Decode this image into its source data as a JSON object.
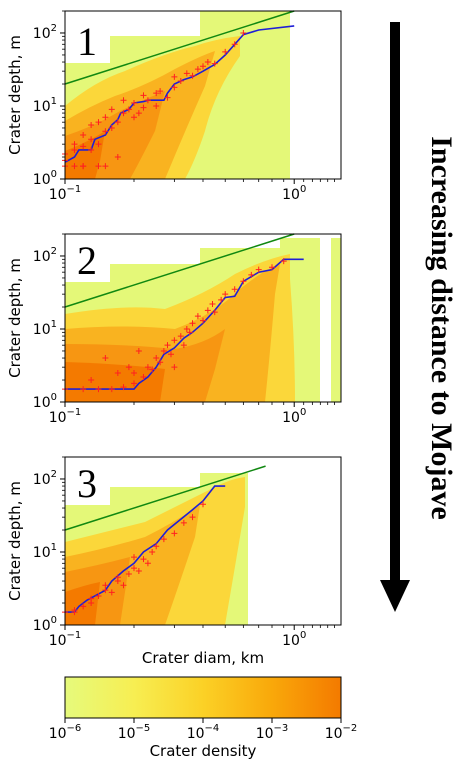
{
  "chart_data": [
    {
      "type": "heatmap",
      "panel_label": "1",
      "xlabel": "",
      "ylabel": "Crater depth, m",
      "x_scale": "log",
      "y_scale": "log",
      "xlim": [
        0.1,
        1.6
      ],
      "ylim": [
        1,
        200
      ],
      "x_ticks": [
        {
          "value": 0.1,
          "base": "10",
          "exp": "−1"
        },
        {
          "value": 1,
          "base": "10",
          "exp": "0"
        }
      ],
      "y_ticks": [
        {
          "value": 1,
          "base": "10",
          "exp": "0"
        },
        {
          "value": 10,
          "base": "10",
          "exp": "1"
        },
        {
          "value": 100,
          "base": "10",
          "exp": "2"
        }
      ],
      "median_line": {
        "x": [
          0.1,
          0.11,
          0.115,
          0.13,
          0.135,
          0.15,
          0.16,
          0.17,
          0.175,
          0.19,
          0.2,
          0.22,
          0.23,
          0.25,
          0.27,
          0.28,
          0.3,
          0.33,
          0.36,
          0.4,
          0.45,
          0.5,
          0.6,
          0.7,
          1.0
        ],
        "y": [
          1.7,
          2.0,
          2.5,
          2.5,
          3.5,
          4.0,
          5.5,
          6.5,
          8.0,
          9.0,
          11.0,
          11.5,
          12.0,
          12.0,
          12.0,
          15.0,
          20.0,
          23.0,
          25.0,
          30.0,
          37.0,
          50.0,
          95.0,
          110.0,
          125.0
        ]
      },
      "fit_line": {
        "x": [
          0.1,
          1.0
        ],
        "y": [
          20,
          200
        ]
      },
      "scatter": {
        "x": [
          0.1,
          0.1,
          0.1,
          0.11,
          0.11,
          0.12,
          0.12,
          0.12,
          0.13,
          0.13,
          0.13,
          0.14,
          0.14,
          0.15,
          0.15,
          0.16,
          0.16,
          0.17,
          0.18,
          0.18,
          0.19,
          0.2,
          0.21,
          0.22,
          0.23,
          0.25,
          0.26,
          0.28,
          0.3,
          0.3,
          0.32,
          0.34,
          0.36,
          0.38,
          0.4,
          0.42,
          0.45,
          0.5,
          0.55,
          0.6,
          0.11,
          0.12,
          0.14,
          0.15,
          0.17,
          0.2,
          0.22,
          0.25
        ],
        "y": [
          1.5,
          1.8,
          2.2,
          2.5,
          3.0,
          1.5,
          2.8,
          4.0,
          2.5,
          3.5,
          5.5,
          3.0,
          6.0,
          4.5,
          7.0,
          5.0,
          9.0,
          6.0,
          8.0,
          12.0,
          9.0,
          11.0,
          8.0,
          14.0,
          12.0,
          10.0,
          16.0,
          13.0,
          18.0,
          25.0,
          22.0,
          28.0,
          26.0,
          32.0,
          35.0,
          40.0,
          38.0,
          55.0,
          70.0,
          100.0,
          1.5,
          1.5,
          1.5,
          1.5,
          2.0,
          7.0,
          9.5,
          15.0
        ]
      }
    },
    {
      "type": "heatmap",
      "panel_label": "2",
      "xlabel": "",
      "ylabel": "Crater depth, m",
      "x_scale": "log",
      "y_scale": "log",
      "xlim": [
        0.1,
        1.6
      ],
      "ylim": [
        1,
        200
      ],
      "x_ticks": [
        {
          "value": 0.1,
          "base": "10",
          "exp": "−1"
        },
        {
          "value": 1,
          "base": "10",
          "exp": "0"
        }
      ],
      "y_ticks": [
        {
          "value": 1,
          "base": "10",
          "exp": "0"
        },
        {
          "value": 10,
          "base": "10",
          "exp": "1"
        },
        {
          "value": 100,
          "base": "10",
          "exp": "2"
        }
      ],
      "median_line": {
        "x": [
          0.1,
          0.2,
          0.21,
          0.23,
          0.25,
          0.27,
          0.3,
          0.33,
          0.36,
          0.4,
          0.45,
          0.5,
          0.55,
          0.6,
          0.7,
          0.8,
          0.9,
          1.1
        ],
        "y": [
          1.5,
          1.5,
          1.8,
          2.2,
          3.0,
          4.5,
          5.5,
          7.5,
          9.0,
          12.0,
          18.0,
          27.0,
          28.0,
          45.0,
          60.0,
          65.0,
          90.0,
          90.0
        ]
      },
      "fit_line": {
        "x": [
          0.1,
          1.0
        ],
        "y": [
          20,
          200
        ]
      },
      "scatter": {
        "x": [
          0.1,
          0.12,
          0.14,
          0.16,
          0.18,
          0.2,
          0.2,
          0.22,
          0.23,
          0.24,
          0.25,
          0.26,
          0.27,
          0.28,
          0.29,
          0.3,
          0.3,
          0.32,
          0.33,
          0.34,
          0.35,
          0.36,
          0.38,
          0.4,
          0.42,
          0.44,
          0.45,
          0.48,
          0.5,
          0.55,
          0.6,
          0.65,
          0.7,
          0.8,
          0.9,
          0.13,
          0.15,
          0.17,
          0.19,
          0.21
        ],
        "y": [
          1.5,
          1.5,
          1.5,
          1.5,
          1.6,
          1.8,
          2.5,
          2.2,
          3.0,
          2.8,
          4.0,
          3.5,
          5.0,
          6.0,
          4.5,
          7.0,
          3.0,
          8.0,
          6.0,
          10.0,
          9.0,
          12.0,
          15.0,
          13.0,
          18.0,
          22.0,
          17.0,
          25.0,
          30.0,
          35.0,
          45.0,
          55.0,
          65.0,
          70.0,
          85.0,
          2.0,
          4.0,
          2.5,
          3.0,
          5.0
        ]
      }
    },
    {
      "type": "heatmap",
      "panel_label": "3",
      "xlabel": "Crater diam, km",
      "ylabel": "Crater depth, m",
      "x_scale": "log",
      "y_scale": "log",
      "xlim": [
        0.1,
        1.6
      ],
      "ylim": [
        1,
        200
      ],
      "x_ticks": [
        {
          "value": 0.1,
          "base": "10",
          "exp": "−1"
        },
        {
          "value": 1,
          "base": "10",
          "exp": "0"
        }
      ],
      "y_ticks": [
        {
          "value": 1,
          "base": "10",
          "exp": "0"
        },
        {
          "value": 10,
          "base": "10",
          "exp": "1"
        },
        {
          "value": 100,
          "base": "10",
          "exp": "2"
        }
      ],
      "median_line": {
        "x": [
          0.1,
          0.11,
          0.115,
          0.125,
          0.135,
          0.15,
          0.16,
          0.18,
          0.2,
          0.22,
          0.25,
          0.28,
          0.32,
          0.36,
          0.4,
          0.45,
          0.5
        ],
        "y": [
          1.5,
          1.5,
          1.8,
          2.2,
          2.5,
          3.0,
          4.0,
          5.5,
          7.0,
          10.0,
          13.0,
          20.0,
          28.0,
          38.0,
          50.0,
          80.0,
          80.0
        ]
      },
      "fit_line": {
        "x": [
          0.1,
          0.75
        ],
        "y": [
          20,
          150
        ]
      },
      "scatter": {
        "x": [
          0.1,
          0.11,
          0.12,
          0.13,
          0.14,
          0.15,
          0.16,
          0.17,
          0.18,
          0.19,
          0.2,
          0.21,
          0.22,
          0.23,
          0.24,
          0.25,
          0.27,
          0.3,
          0.33,
          0.36,
          0.4,
          0.11,
          0.13,
          0.15,
          0.17,
          0.2
        ],
        "y": [
          1.5,
          1.6,
          1.8,
          2.0,
          2.5,
          3.0,
          2.8,
          4.0,
          3.5,
          5.0,
          6.0,
          5.5,
          8.0,
          7.0,
          10.0,
          12.0,
          15.0,
          18.0,
          25.0,
          30.0,
          45.0,
          1.5,
          2.3,
          3.5,
          4.5,
          8.5
        ]
      }
    },
    {
      "type": "colorbar",
      "label": "Crater density",
      "scale": "log",
      "range": [
        1e-06,
        0.01
      ],
      "ticks": [
        {
          "value": 1e-06,
          "base": "10",
          "exp": "−6"
        },
        {
          "value": 1e-05,
          "base": "10",
          "exp": "−5"
        },
        {
          "value": 0.0001,
          "base": "10",
          "exp": "−4"
        },
        {
          "value": 0.001,
          "base": "10",
          "exp": "−3"
        },
        {
          "value": 0.01,
          "base": "10",
          "exp": "−2"
        }
      ],
      "colors": {
        "low": "#e4f878",
        "high": "#f47a00"
      }
    }
  ],
  "side_label": "Increasing distance to Mojave",
  "colors": {
    "median_line": "#1f1fd6",
    "fit_line": "#118811",
    "scatter": "#ff2020",
    "background": "#e4f878"
  }
}
